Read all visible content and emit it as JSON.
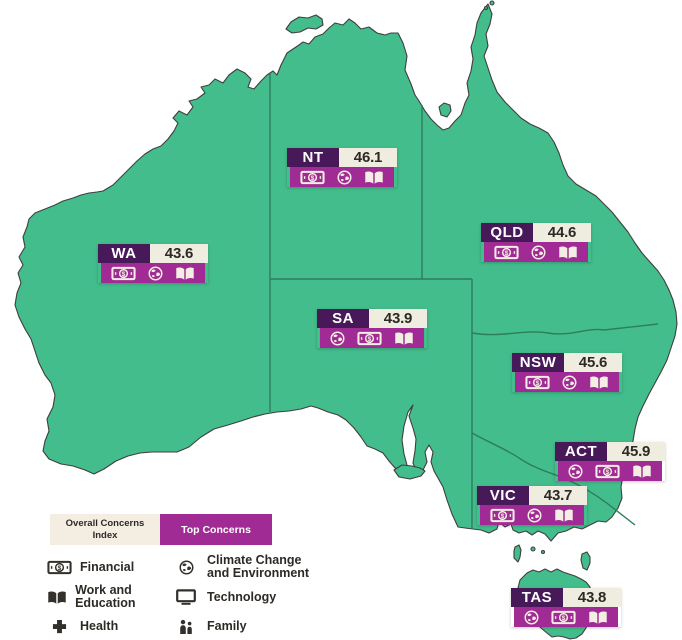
{
  "colors": {
    "map_fill": "#43bd8c",
    "map_border": "#2e7d5b",
    "coastline": "#3f3f3f",
    "label_dark_purple": "#471958",
    "label_magenta": "#a12b94",
    "label_cream": "#efece0",
    "legend_cream": "#f3eee1",
    "text_dark": "#2d2a26",
    "icon_cream": "#f2eee3"
  },
  "states": [
    {
      "abbrev": "NT",
      "value": "46.1",
      "top_concerns": [
        "financial",
        "climate",
        "work-education"
      ]
    },
    {
      "abbrev": "WA",
      "value": "43.6",
      "top_concerns": [
        "financial",
        "climate",
        "work-education"
      ]
    },
    {
      "abbrev": "QLD",
      "value": "44.6",
      "top_concerns": [
        "financial",
        "climate",
        "work-education"
      ]
    },
    {
      "abbrev": "SA",
      "value": "43.9",
      "top_concerns": [
        "climate",
        "financial",
        "work-education"
      ]
    },
    {
      "abbrev": "NSW",
      "value": "45.6",
      "top_concerns": [
        "financial",
        "climate",
        "work-education"
      ]
    },
    {
      "abbrev": "ACT",
      "value": "45.9",
      "top_concerns": [
        "climate",
        "financial",
        "work-education"
      ]
    },
    {
      "abbrev": "VIC",
      "value": "43.7",
      "top_concerns": [
        "financial",
        "climate",
        "work-education"
      ]
    },
    {
      "abbrev": "TAS",
      "value": "43.8",
      "top_concerns": [
        "climate",
        "financial",
        "work-education"
      ]
    }
  ],
  "legend": {
    "index_label": "Overall Concerns Index",
    "top_concerns_label": "Top Concerns",
    "items": [
      {
        "icon": "financial",
        "label": "Financial"
      },
      {
        "icon": "work-education",
        "label": "Work and Education"
      },
      {
        "icon": "health",
        "label": "Health"
      },
      {
        "icon": "climate",
        "label": "Climate Change and Environment"
      },
      {
        "icon": "technology",
        "label": "Technology"
      },
      {
        "icon": "family",
        "label": "Family"
      }
    ]
  }
}
